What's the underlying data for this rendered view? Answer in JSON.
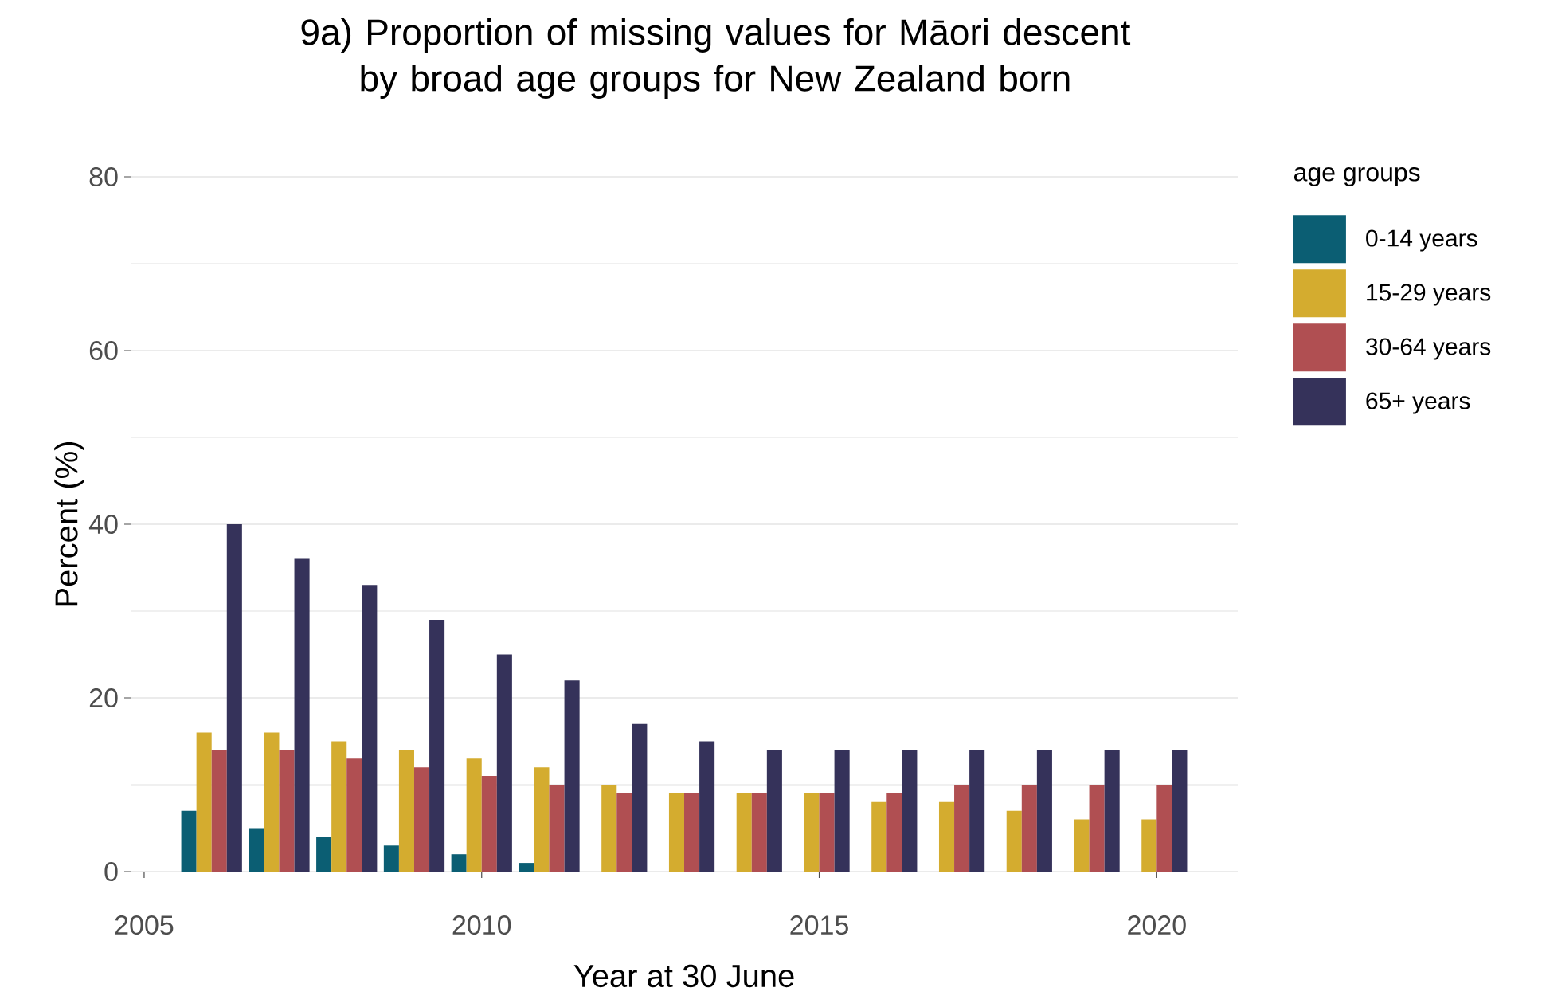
{
  "chart_data": {
    "type": "bar",
    "title": "9a) Proportion of missing values for Māori descent by broad age groups for New Zealand born",
    "xlabel": "Year at 30 June",
    "ylabel": "Percent (%)",
    "legend_title": "age groups",
    "x": [
      2006,
      2007,
      2008,
      2009,
      2010,
      2011,
      2012,
      2013,
      2014,
      2015,
      2016,
      2017,
      2018,
      2019,
      2020
    ],
    "series": [
      {
        "name": "0-14 years",
        "color": "#0b5e73",
        "values": [
          7,
          5,
          4,
          3,
          2,
          1,
          null,
          null,
          null,
          null,
          null,
          null,
          null,
          null,
          null
        ]
      },
      {
        "name": "15-29 years",
        "color": "#d4ac2f",
        "values": [
          16,
          16,
          15,
          14,
          13,
          12,
          10,
          9,
          9,
          9,
          8,
          8,
          7,
          6,
          6
        ]
      },
      {
        "name": "30-64 years",
        "color": "#b04f52",
        "values": [
          14,
          14,
          13,
          12,
          11,
          10,
          9,
          9,
          9,
          9,
          9,
          10,
          10,
          10,
          10
        ]
      },
      {
        "name": "65+ years",
        "color": "#35325a",
        "values": [
          40,
          36,
          33,
          29,
          25,
          22,
          17,
          15,
          14,
          14,
          14,
          14,
          14,
          14,
          14
        ]
      }
    ],
    "xlim": [
      2004.8,
      2021.2
    ],
    "ylim": [
      0,
      80
    ],
    "xticks": [
      2005,
      2010,
      2015,
      2020
    ],
    "yticks": [
      0,
      20,
      40,
      60,
      80
    ],
    "grid": "y",
    "legend": "right"
  }
}
